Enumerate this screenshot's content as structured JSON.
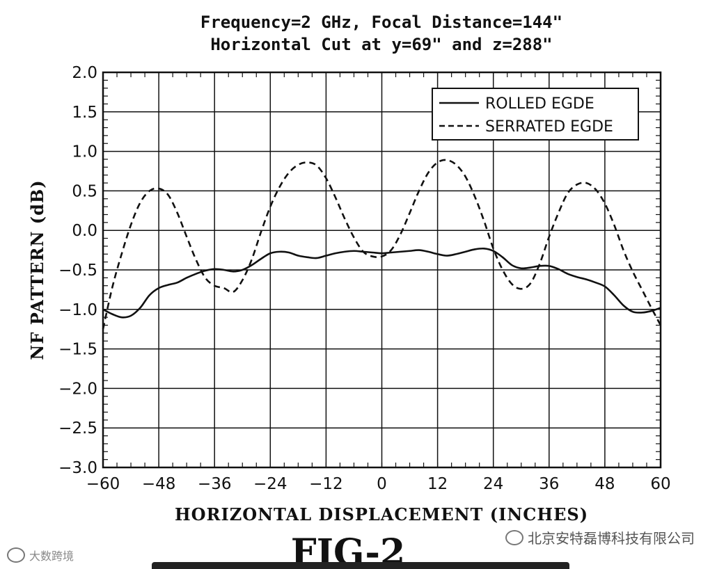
{
  "chart_data": {
    "type": "line",
    "title_line1": "Frequency=2 GHz, Focal Distance=144\"",
    "title_line2": "Horizontal Cut at y=69\" and z=288\"",
    "xlabel": "HORIZONTAL DISPLACEMENT (INCHES)",
    "ylabel": "NF PATTERN (dB)",
    "xlim": [
      -60,
      60
    ],
    "ylim": [
      -3.0,
      2.0
    ],
    "xticks": [
      -60,
      -48,
      -36,
      -24,
      -12,
      0,
      12,
      24,
      36,
      48,
      60
    ],
    "xtick_labels": [
      "−60",
      "−48",
      "−36",
      "−24",
      "−12",
      "0",
      "12",
      "24",
      "36",
      "48",
      "60"
    ],
    "yticks": [
      2.0,
      1.5,
      1.0,
      0.5,
      0.0,
      -0.5,
      -1.0,
      -1.5,
      -2.0,
      -2.5,
      -3.0
    ],
    "ytick_labels": [
      "2.0",
      "1.5",
      "1.0",
      "0.5",
      "0.0",
      "−0.5",
      "−1.0",
      "−1.5",
      "−2.0",
      "−2.5",
      "−3.0"
    ],
    "grid": true,
    "legend_position": "top-right",
    "series": [
      {
        "name": "ROLLED EGDE",
        "style": "solid",
        "x": [
          -60,
          -58,
          -56,
          -54,
          -52,
          -50,
          -48,
          -46,
          -44,
          -42,
          -40,
          -38,
          -36,
          -34,
          -32,
          -30,
          -28,
          -26,
          -24,
          -22,
          -20,
          -18,
          -16,
          -14,
          -12,
          -10,
          -8,
          -6,
          -4,
          -2,
          0,
          2,
          4,
          6,
          8,
          10,
          12,
          14,
          16,
          18,
          20,
          22,
          24,
          26,
          28,
          30,
          32,
          34,
          36,
          38,
          40,
          42,
          44,
          46,
          48,
          50,
          52,
          54,
          56,
          58,
          60
        ],
        "y": [
          -1.0,
          -1.06,
          -1.1,
          -1.08,
          -0.98,
          -0.82,
          -0.73,
          -0.69,
          -0.66,
          -0.6,
          -0.55,
          -0.51,
          -0.49,
          -0.5,
          -0.52,
          -0.5,
          -0.44,
          -0.36,
          -0.29,
          -0.27,
          -0.28,
          -0.32,
          -0.34,
          -0.35,
          -0.32,
          -0.29,
          -0.27,
          -0.26,
          -0.27,
          -0.28,
          -0.29,
          -0.28,
          -0.27,
          -0.26,
          -0.25,
          -0.27,
          -0.3,
          -0.32,
          -0.3,
          -0.27,
          -0.24,
          -0.23,
          -0.26,
          -0.34,
          -0.44,
          -0.48,
          -0.47,
          -0.45,
          -0.45,
          -0.49,
          -0.55,
          -0.59,
          -0.62,
          -0.66,
          -0.71,
          -0.82,
          -0.95,
          -1.03,
          -1.04,
          -1.02,
          -0.98
        ]
      },
      {
        "name": "SERRATED EGDE",
        "style": "dashed",
        "x": [
          -60,
          -58,
          -56,
          -54,
          -52,
          -50,
          -48,
          -46,
          -44,
          -42,
          -40,
          -38,
          -36,
          -34,
          -32,
          -30,
          -28,
          -26,
          -24,
          -22,
          -20,
          -18,
          -16,
          -14,
          -12,
          -10,
          -8,
          -6,
          -4,
          -2,
          0,
          2,
          4,
          6,
          8,
          10,
          12,
          14,
          16,
          18,
          20,
          22,
          24,
          26,
          28,
          30,
          32,
          34,
          36,
          38,
          40,
          42,
          44,
          46,
          48,
          50,
          52,
          54,
          56,
          58,
          60
        ],
        "y": [
          -1.25,
          -0.72,
          -0.3,
          0.07,
          0.35,
          0.5,
          0.53,
          0.45,
          0.22,
          -0.08,
          -0.37,
          -0.6,
          -0.7,
          -0.73,
          -0.78,
          -0.63,
          -0.37,
          -0.02,
          0.3,
          0.55,
          0.73,
          0.83,
          0.86,
          0.82,
          0.66,
          0.42,
          0.15,
          -0.09,
          -0.27,
          -0.33,
          -0.33,
          -0.25,
          -0.05,
          0.22,
          0.5,
          0.73,
          0.86,
          0.89,
          0.83,
          0.68,
          0.43,
          0.12,
          -0.23,
          -0.5,
          -0.68,
          -0.74,
          -0.67,
          -0.42,
          -0.08,
          0.22,
          0.47,
          0.58,
          0.6,
          0.52,
          0.34,
          0.07,
          -0.25,
          -0.52,
          -0.75,
          -0.98,
          -1.2
        ]
      }
    ],
    "figure_label": "FIG-2"
  },
  "watermarks": {
    "right": "北京安特磊博科技有限公司",
    "left": "大数跨境"
  }
}
